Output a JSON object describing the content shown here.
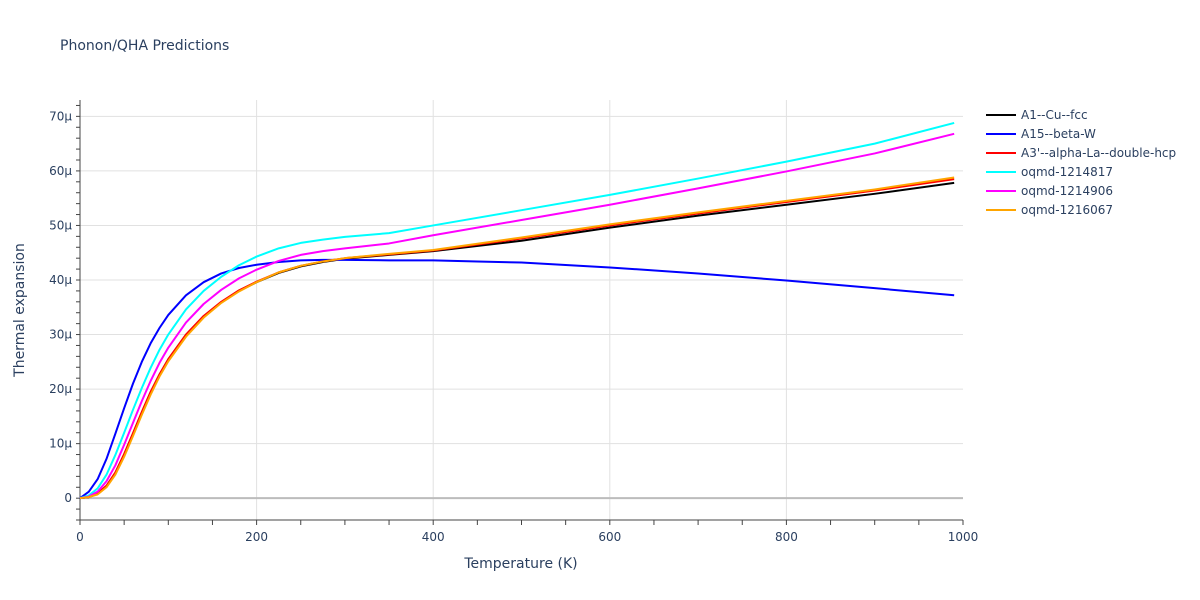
{
  "chart_data": {
    "type": "line",
    "title": "Phonon/QHA Predictions",
    "xlabel": "Temperature (K)",
    "ylabel": "Thermal expansion",
    "xlim": [
      0,
      1000
    ],
    "ylim": [
      -4,
      73
    ],
    "x_ticks": [
      0,
      200,
      400,
      600,
      800,
      1000
    ],
    "x_tick_labels": [
      "0",
      "200",
      "400",
      "600",
      "800",
      "1000"
    ],
    "y_ticks": [
      0,
      10,
      20,
      30,
      40,
      50,
      60,
      70
    ],
    "y_tick_labels": [
      "0",
      "10μ",
      "20μ",
      "30μ",
      "40μ",
      "50μ",
      "60μ",
      "70μ"
    ],
    "grid": true,
    "legend_position": "right",
    "series": [
      {
        "name": "A1--Cu--fcc",
        "color": "#000000",
        "x": [
          0,
          10,
          20,
          30,
          40,
          50,
          60,
          70,
          80,
          90,
          100,
          120,
          140,
          160,
          180,
          200,
          225,
          250,
          275,
          300,
          350,
          400,
          500,
          600,
          700,
          800,
          900,
          990
        ],
        "y": [
          0,
          0.2,
          0.8,
          2.2,
          4.6,
          8.0,
          11.8,
          15.7,
          19.4,
          22.6,
          25.4,
          29.9,
          33.3,
          35.9,
          38.0,
          39.6,
          41.3,
          42.5,
          43.3,
          43.9,
          44.6,
          45.3,
          47.2,
          49.6,
          51.8,
          53.8,
          55.8,
          57.8
        ]
      },
      {
        "name": "A15--beta-W",
        "color": "#0000ff",
        "x": [
          0,
          10,
          20,
          30,
          40,
          50,
          60,
          70,
          80,
          90,
          100,
          120,
          140,
          160,
          180,
          200,
          225,
          250,
          275,
          300,
          350,
          400,
          450,
          500,
          600,
          700,
          800,
          900,
          990
        ],
        "y": [
          0,
          1.2,
          3.5,
          7.2,
          11.8,
          16.5,
          21.0,
          25.0,
          28.4,
          31.2,
          33.6,
          37.2,
          39.6,
          41.2,
          42.2,
          42.8,
          43.3,
          43.6,
          43.7,
          43.7,
          43.6,
          43.6,
          43.4,
          43.2,
          42.3,
          41.2,
          39.9,
          38.5,
          37.2
        ]
      },
      {
        "name": "A3'--alpha-La--double-hcp",
        "color": "#ff0000",
        "x": [
          0,
          10,
          20,
          30,
          40,
          50,
          60,
          70,
          80,
          90,
          100,
          120,
          140,
          160,
          180,
          200,
          225,
          250,
          275,
          300,
          350,
          400,
          500,
          600,
          700,
          800,
          900,
          990
        ],
        "y": [
          0,
          0.2,
          0.9,
          2.3,
          4.7,
          8.1,
          11.9,
          15.8,
          19.5,
          22.7,
          25.5,
          30.0,
          33.4,
          36.0,
          38.1,
          39.7,
          41.4,
          42.6,
          43.4,
          44.0,
          44.7,
          45.4,
          47.6,
          50.0,
          52.2,
          54.3,
          56.4,
          58.5
        ]
      },
      {
        "name": "oqmd-1214817",
        "color": "#00ffff",
        "x": [
          0,
          10,
          20,
          30,
          40,
          50,
          60,
          70,
          80,
          90,
          100,
          120,
          140,
          160,
          180,
          200,
          225,
          250,
          275,
          300,
          350,
          400,
          500,
          600,
          700,
          800,
          900,
          990
        ],
        "y": [
          0,
          0.5,
          1.8,
          4.3,
          7.9,
          12.0,
          16.2,
          20.2,
          23.9,
          27.2,
          30.0,
          34.6,
          38.0,
          40.6,
          42.7,
          44.3,
          45.8,
          46.8,
          47.4,
          47.9,
          48.6,
          50.0,
          52.8,
          55.6,
          58.6,
          61.7,
          65.0,
          68.8
        ]
      },
      {
        "name": "oqmd-1214906",
        "color": "#ff00ff",
        "x": [
          0,
          10,
          20,
          30,
          40,
          50,
          60,
          70,
          80,
          90,
          100,
          120,
          140,
          160,
          180,
          200,
          225,
          250,
          275,
          300,
          350,
          400,
          500,
          600,
          700,
          800,
          900,
          990
        ],
        "y": [
          0,
          0.3,
          1.2,
          3.1,
          6.0,
          9.8,
          13.8,
          17.8,
          21.5,
          24.8,
          27.6,
          32.2,
          35.6,
          38.2,
          40.3,
          41.9,
          43.5,
          44.6,
          45.3,
          45.8,
          46.7,
          48.2,
          51.0,
          53.8,
          56.8,
          59.9,
          63.2,
          66.8
        ]
      },
      {
        "name": "oqmd-1216067",
        "color": "#ffa500",
        "x": [
          0,
          10,
          20,
          30,
          40,
          50,
          60,
          70,
          80,
          90,
          100,
          120,
          140,
          160,
          180,
          200,
          225,
          250,
          275,
          300,
          350,
          400,
          500,
          600,
          700,
          800,
          900,
          990
        ],
        "y": [
          0,
          0.2,
          0.7,
          2.0,
          4.3,
          7.6,
          11.4,
          15.3,
          19.0,
          22.3,
          25.1,
          29.6,
          33.1,
          35.8,
          37.9,
          39.6,
          41.4,
          42.6,
          43.4,
          44.0,
          44.8,
          45.5,
          47.8,
          50.2,
          52.4,
          54.5,
          56.6,
          58.8
        ]
      }
    ]
  }
}
